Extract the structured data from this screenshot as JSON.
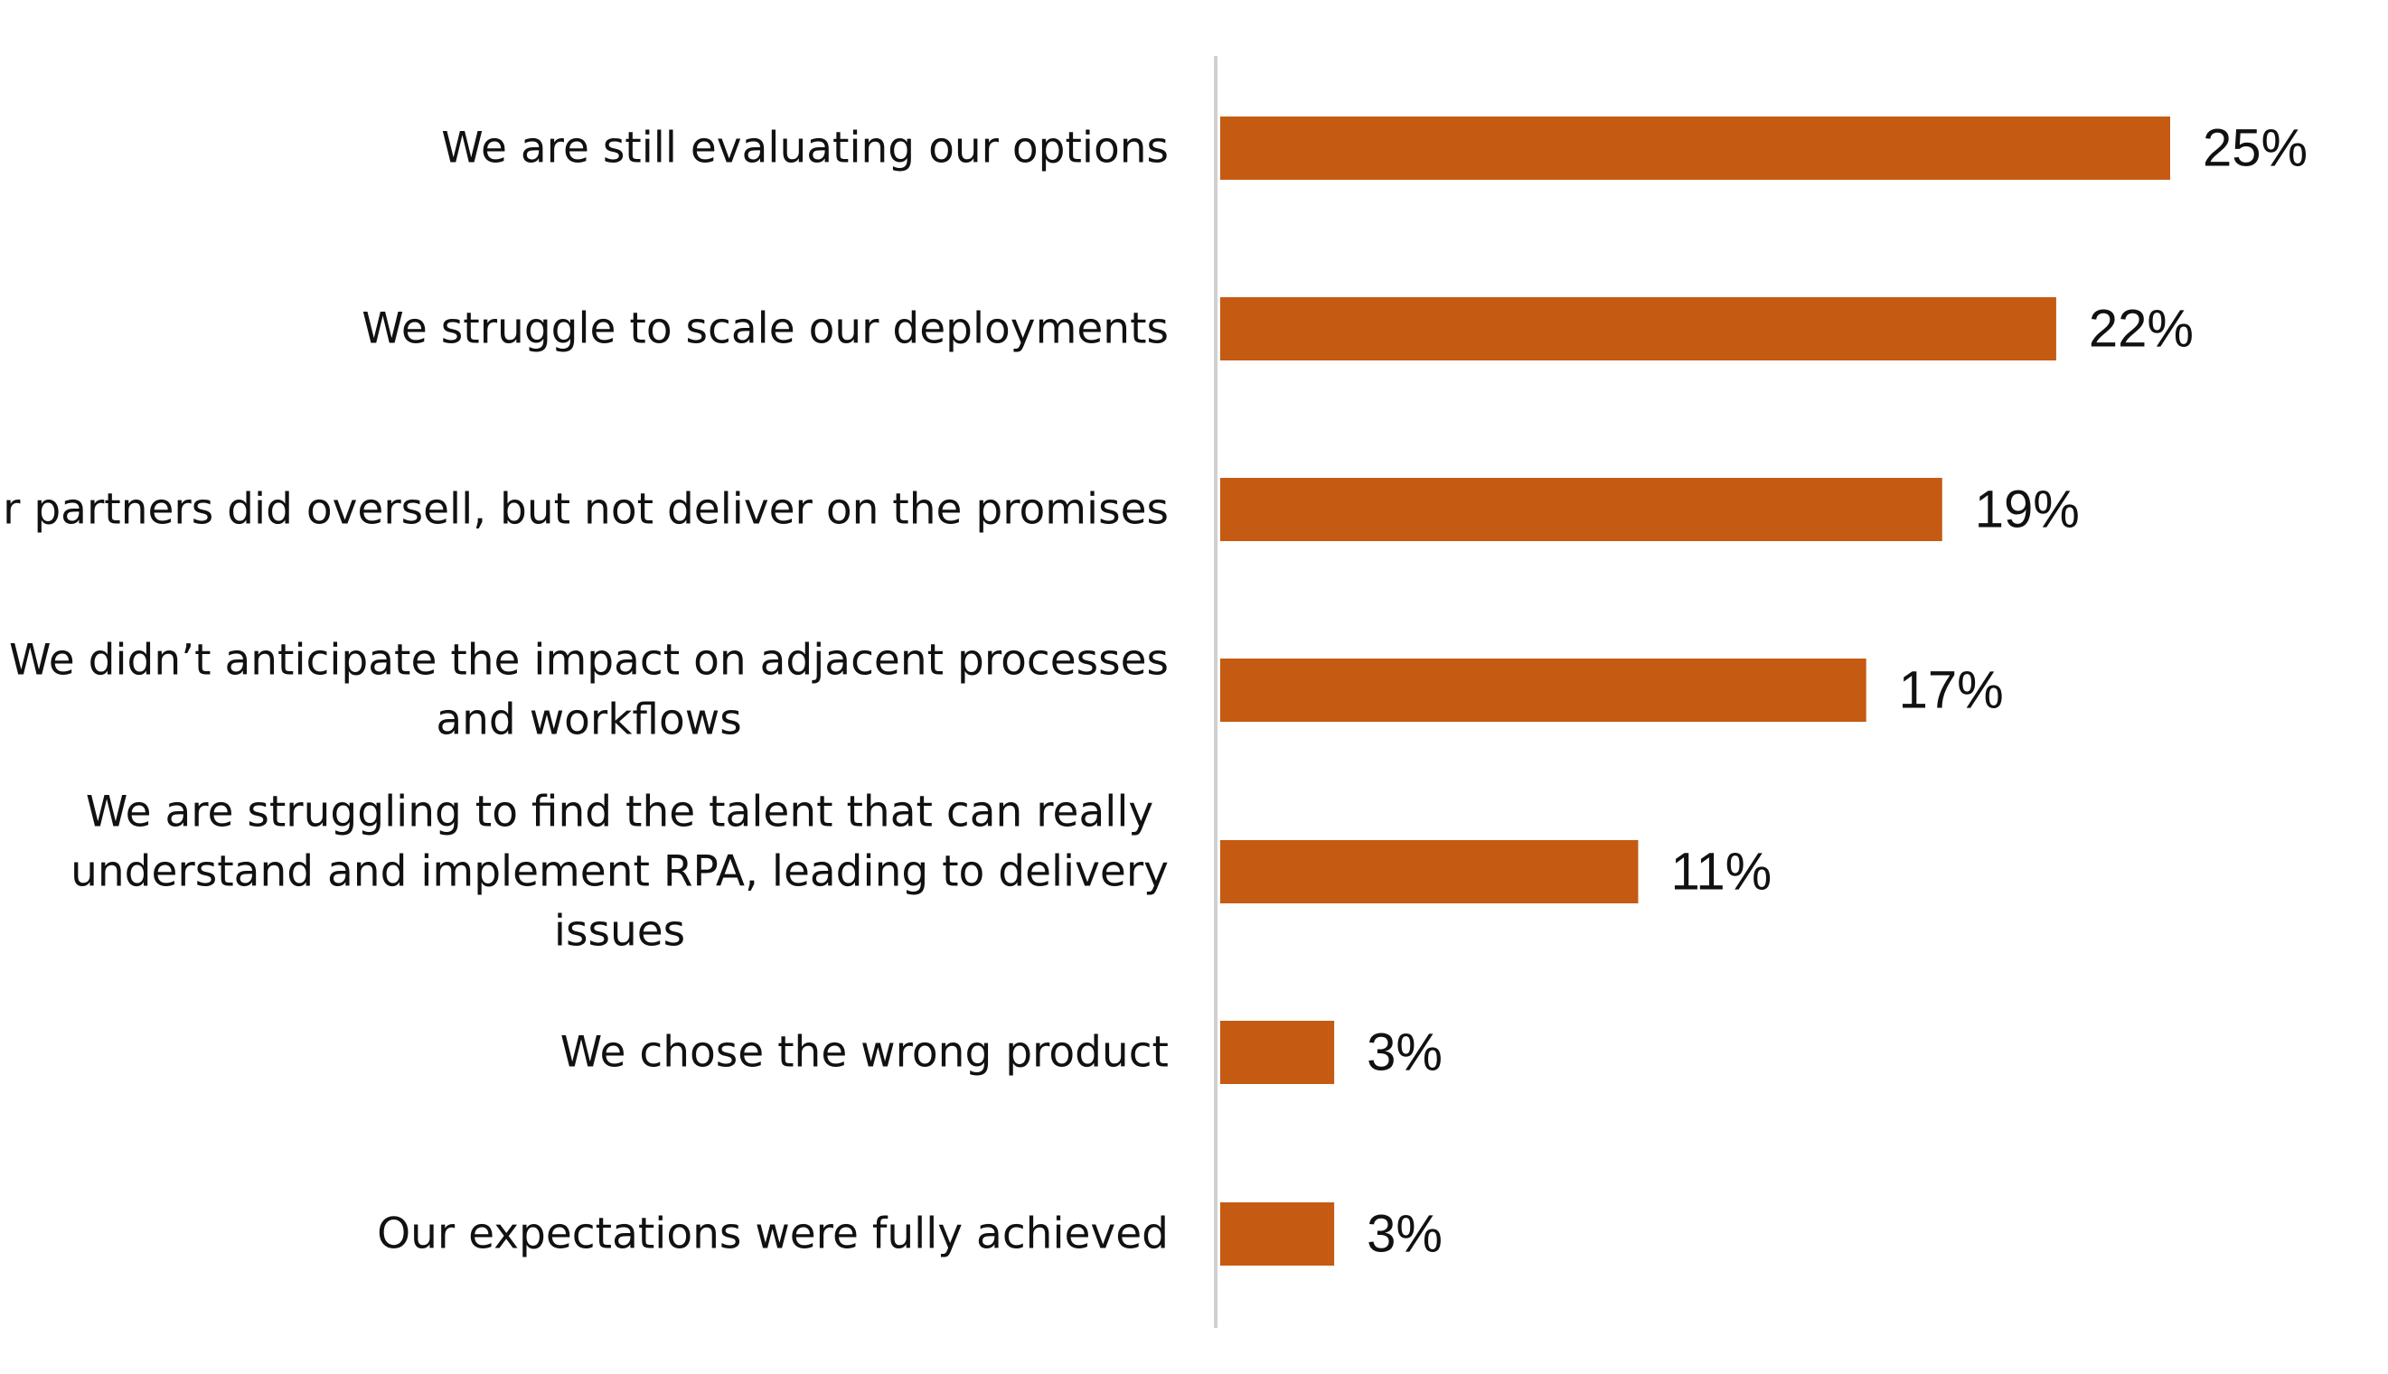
{
  "colors": {
    "bar": "#c55a13",
    "axis": "#d0d0d0",
    "text": "#111111",
    "background": "#ffffff"
  },
  "chart_data": {
    "type": "bar",
    "orientation": "horizontal",
    "title": "",
    "xlabel": "",
    "ylabel": "",
    "grid": false,
    "legend": "none",
    "xlim": [
      0,
      25
    ],
    "categories": [
      "We are still evaluating our options",
      "We struggle to scale our deployments",
      "Our partners did oversell, but not deliver on the promises",
      "We didn’t anticipate the impact on adjacent processes and workflows",
      "We are struggling to find the talent that can really understand and implement RPA, leading to delivery issues",
      "We chose the wrong product",
      "Our expectations were fully achieved"
    ],
    "category_lines": [
      [
        "We are still evaluating our options"
      ],
      [
        "We struggle to scale our deployments"
      ],
      [
        "Our partners did oversell, but not deliver on the promises"
      ],
      [
        "We didn’t anticipate the impact on adjacent processes",
        "and workflows"
      ],
      [
        "We are struggling to find the talent that can really",
        "understand and implement RPA, leading to delivery",
        "issues"
      ],
      [
        "We chose the wrong product"
      ],
      [
        "Our expectations were fully achieved"
      ]
    ],
    "values": [
      25,
      22,
      19,
      17,
      11,
      3,
      3
    ],
    "value_labels": [
      "25%",
      "22%",
      "19%",
      "17%",
      "11%",
      "3%",
      "3%"
    ]
  }
}
